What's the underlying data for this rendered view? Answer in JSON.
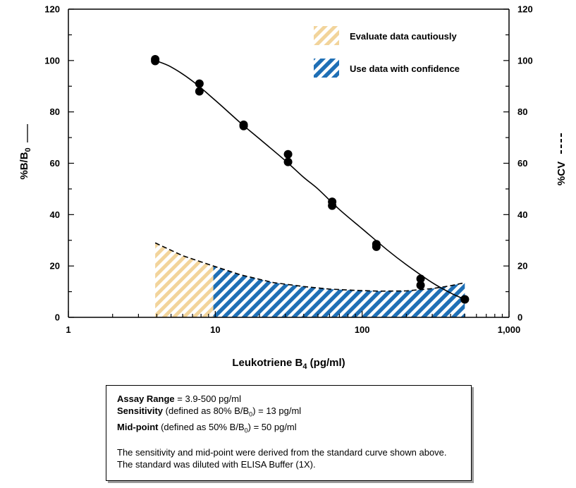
{
  "chart_data": {
    "type": "line",
    "x_scale": "log",
    "xlim": [
      1,
      1000
    ],
    "ylim": [
      0,
      120
    ],
    "y2lim": [
      0,
      120
    ],
    "x_ticks": [
      1,
      10,
      100,
      1000
    ],
    "x_tick_labels": [
      "1",
      "10",
      "100",
      "1,000"
    ],
    "y_ticks": [
      0,
      20,
      40,
      60,
      80,
      100,
      120
    ],
    "y_tick_labels": [
      "0",
      "20",
      "40",
      "60",
      "80",
      "100",
      "120"
    ],
    "y2_tick_labels": [
      "0",
      "20",
      "40",
      "60",
      "80",
      "100",
      "120"
    ],
    "xlabel": "Leukotriene B",
    "xlabel_sub": "4",
    "xlabel_suffix": " (pg/ml)",
    "ylabel": "%B/B",
    "ylabel_sub": "0",
    "y2label": "%CV",
    "legend_position": "top-right",
    "legend": [
      {
        "label": "Evaluate data cautiously",
        "color": "#f2d49b",
        "pattern": "diagonal-hatch"
      },
      {
        "label": "Use data with confidence",
        "color": "#1f6fb5",
        "pattern": "diagonal-hatch"
      }
    ],
    "points": [
      {
        "x": 3.9,
        "y": 100.5
      },
      {
        "x": 3.9,
        "y": 99.8
      },
      {
        "x": 7.8,
        "y": 91
      },
      {
        "x": 7.8,
        "y": 88
      },
      {
        "x": 15.6,
        "y": 75
      },
      {
        "x": 15.6,
        "y": 74.5
      },
      {
        "x": 31.3,
        "y": 63.5
      },
      {
        "x": 31.3,
        "y": 60.5
      },
      {
        "x": 62.5,
        "y": 45
      },
      {
        "x": 62.5,
        "y": 43.5
      },
      {
        "x": 125,
        "y": 28.5
      },
      {
        "x": 125,
        "y": 27.5
      },
      {
        "x": 250,
        "y": 15
      },
      {
        "x": 250,
        "y": 12.5
      },
      {
        "x": 500,
        "y": 7
      },
      {
        "x": 500,
        "y": 7
      }
    ],
    "fit_curve": [
      {
        "x": 3.9,
        "y": 100
      },
      {
        "x": 5,
        "y": 97.5
      },
      {
        "x": 7,
        "y": 92
      },
      {
        "x": 10,
        "y": 84.5
      },
      {
        "x": 15,
        "y": 75.5
      },
      {
        "x": 20,
        "y": 69.5
      },
      {
        "x": 30,
        "y": 61
      },
      {
        "x": 40,
        "y": 54.5
      },
      {
        "x": 50,
        "y": 50
      },
      {
        "x": 70,
        "y": 42
      },
      {
        "x": 100,
        "y": 34.5
      },
      {
        "x": 150,
        "y": 26
      },
      {
        "x": 200,
        "y": 20.5
      },
      {
        "x": 300,
        "y": 13.5
      },
      {
        "x": 400,
        "y": 9.5
      },
      {
        "x": 500,
        "y": 7
      }
    ],
    "cv_curve": [
      {
        "x": 3.9,
        "y": 29
      },
      {
        "x": 6,
        "y": 24
      },
      {
        "x": 9.7,
        "y": 20
      },
      {
        "x": 15,
        "y": 16.5
      },
      {
        "x": 25,
        "y": 13.5
      },
      {
        "x": 40,
        "y": 12
      },
      {
        "x": 60,
        "y": 11
      },
      {
        "x": 90,
        "y": 10.5
      },
      {
        "x": 130,
        "y": 10.2
      },
      {
        "x": 200,
        "y": 10.3
      },
      {
        "x": 300,
        "y": 11.2
      },
      {
        "x": 400,
        "y": 12.3
      },
      {
        "x": 500,
        "y": 13.5
      }
    ],
    "caution_x_range": [
      3.9,
      9.7
    ],
    "confidence_x_range": [
      9.7,
      500
    ]
  },
  "info_box": {
    "range_label": "Assay Range",
    "range_value": " = 3.9-500 pg/ml",
    "sens_label": "Sensitivity",
    "sens_mid": " (defined as 80% B/B",
    "sens_sub": "0",
    "sens_value": ") = 13 pg/ml",
    "mid_label": "Mid-point",
    "mid_mid": " (defined as 50% B/B",
    "mid_sub": "0",
    "mid_value": ") = 50 pg/ml",
    "note": "The sensitivity and mid-point were derived from the standard curve shown above. The standard was diluted with ELISA Buffer (1X)."
  }
}
